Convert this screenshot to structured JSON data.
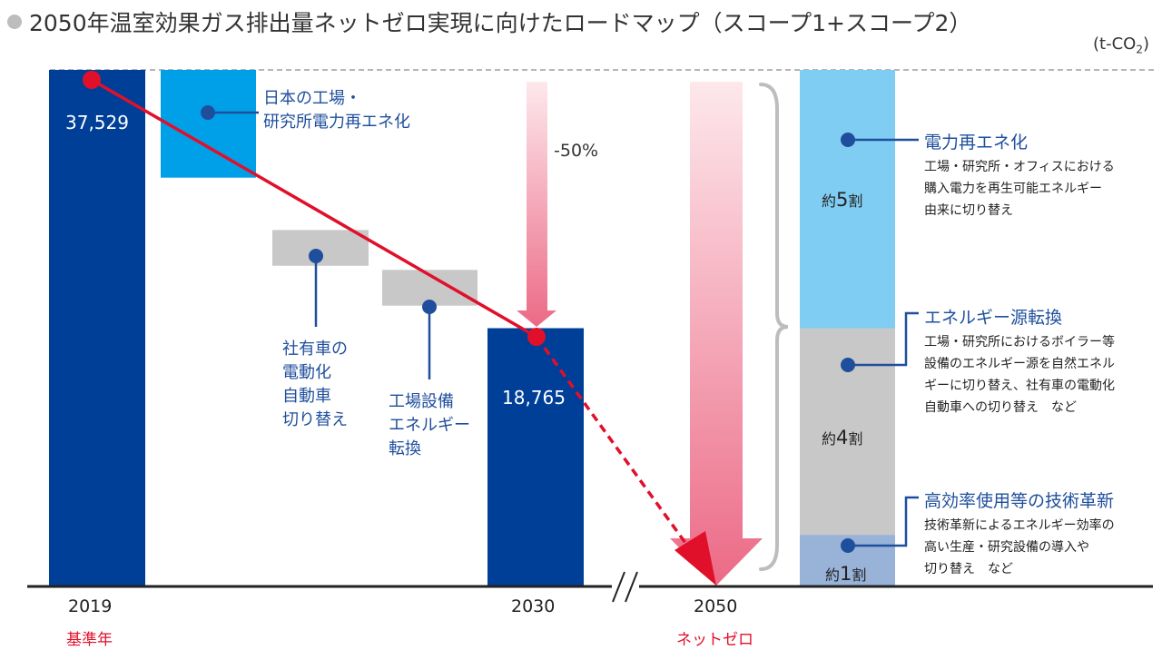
{
  "title": "2050年温室効果ガス排出量ネットゼロ実現に向けたロードマップ（スコープ1+スコープ2）",
  "unit_prefix": "(t-CO",
  "unit_sub": "2",
  "unit_suffix": ")",
  "chart_data": {
    "type": "waterfall",
    "ylim": [
      0,
      37529
    ],
    "bars": [
      {
        "category": "2019",
        "kind": "total",
        "value": 37529,
        "label": "37,529",
        "color": "#003f98"
      },
      {
        "kind": "reduction",
        "name": "日本の工場・研究所電力再エネ化",
        "from": 37529,
        "to": 29700,
        "color": "#00a0e9"
      },
      {
        "kind": "reduction",
        "name": "社有車の電動化自動車切り替え",
        "from": 25900,
        "to": 23300,
        "color": "#c8c8c8"
      },
      {
        "kind": "reduction",
        "name": "工場設備エネルギー転換",
        "from": 23000,
        "to": 20400,
        "color": "#c8c8c8"
      },
      {
        "category": "2030",
        "kind": "total",
        "value": 18765,
        "label": "18,765",
        "color": "#003f98"
      },
      {
        "category": "2050",
        "kind": "total",
        "value": 0
      }
    ],
    "reduction_2030_label": "-50%",
    "stack_2050": [
      {
        "name": "電力再エネ化",
        "share_label_prefix": "約",
        "share_number": "5",
        "share_label_suffix": "割",
        "share": 0.5,
        "color": "#7fcdf2"
      },
      {
        "name": "エネルギー源転換",
        "share_label_prefix": "約",
        "share_number": "4",
        "share_label_suffix": "割",
        "share": 0.4,
        "color": "#c8c8c8"
      },
      {
        "name": "高効率使用等の技術革新",
        "share_label_prefix": "約",
        "share_number": "1",
        "share_label_suffix": "割",
        "share": 0.1,
        "color": "#98b2d8"
      }
    ],
    "colors": {
      "trend": "#e0102a",
      "accent": "#1f4f9c",
      "arrow_top": "#fde8ec",
      "arrow_bottom": "#ec6a86"
    }
  },
  "labels": {
    "cat1": [
      "日本の工場・",
      "研究所電力再エネ化"
    ],
    "cat2": [
      "社有車の",
      "電動化",
      "自動車",
      "切り替え"
    ],
    "cat3": [
      "工場設備",
      "エネルギー",
      "転換"
    ],
    "x_2019": "2019",
    "x_2030": "2030",
    "x_2050": "2050",
    "base_year": "基準年",
    "net_zero": "ネットゼロ"
  },
  "right": {
    "items": [
      {
        "heading": "電力再エネ化",
        "desc": "工場・研究所・オフィスにおける\n購入電力を再生可能エネルギー\n由来に切り替え"
      },
      {
        "heading": "エネルギー源転換",
        "desc": "工場・研究所におけるボイラー等\n設備のエネルギー源を自然エネル\nギーに切り替え、社有車の電動化\n自動車への切り替え　など"
      },
      {
        "heading": "高効率使用等の技術革新",
        "desc": "技術革新によるエネルギー効率の\n高い生産・研究設備の導入や\n切り替え　など"
      }
    ]
  }
}
